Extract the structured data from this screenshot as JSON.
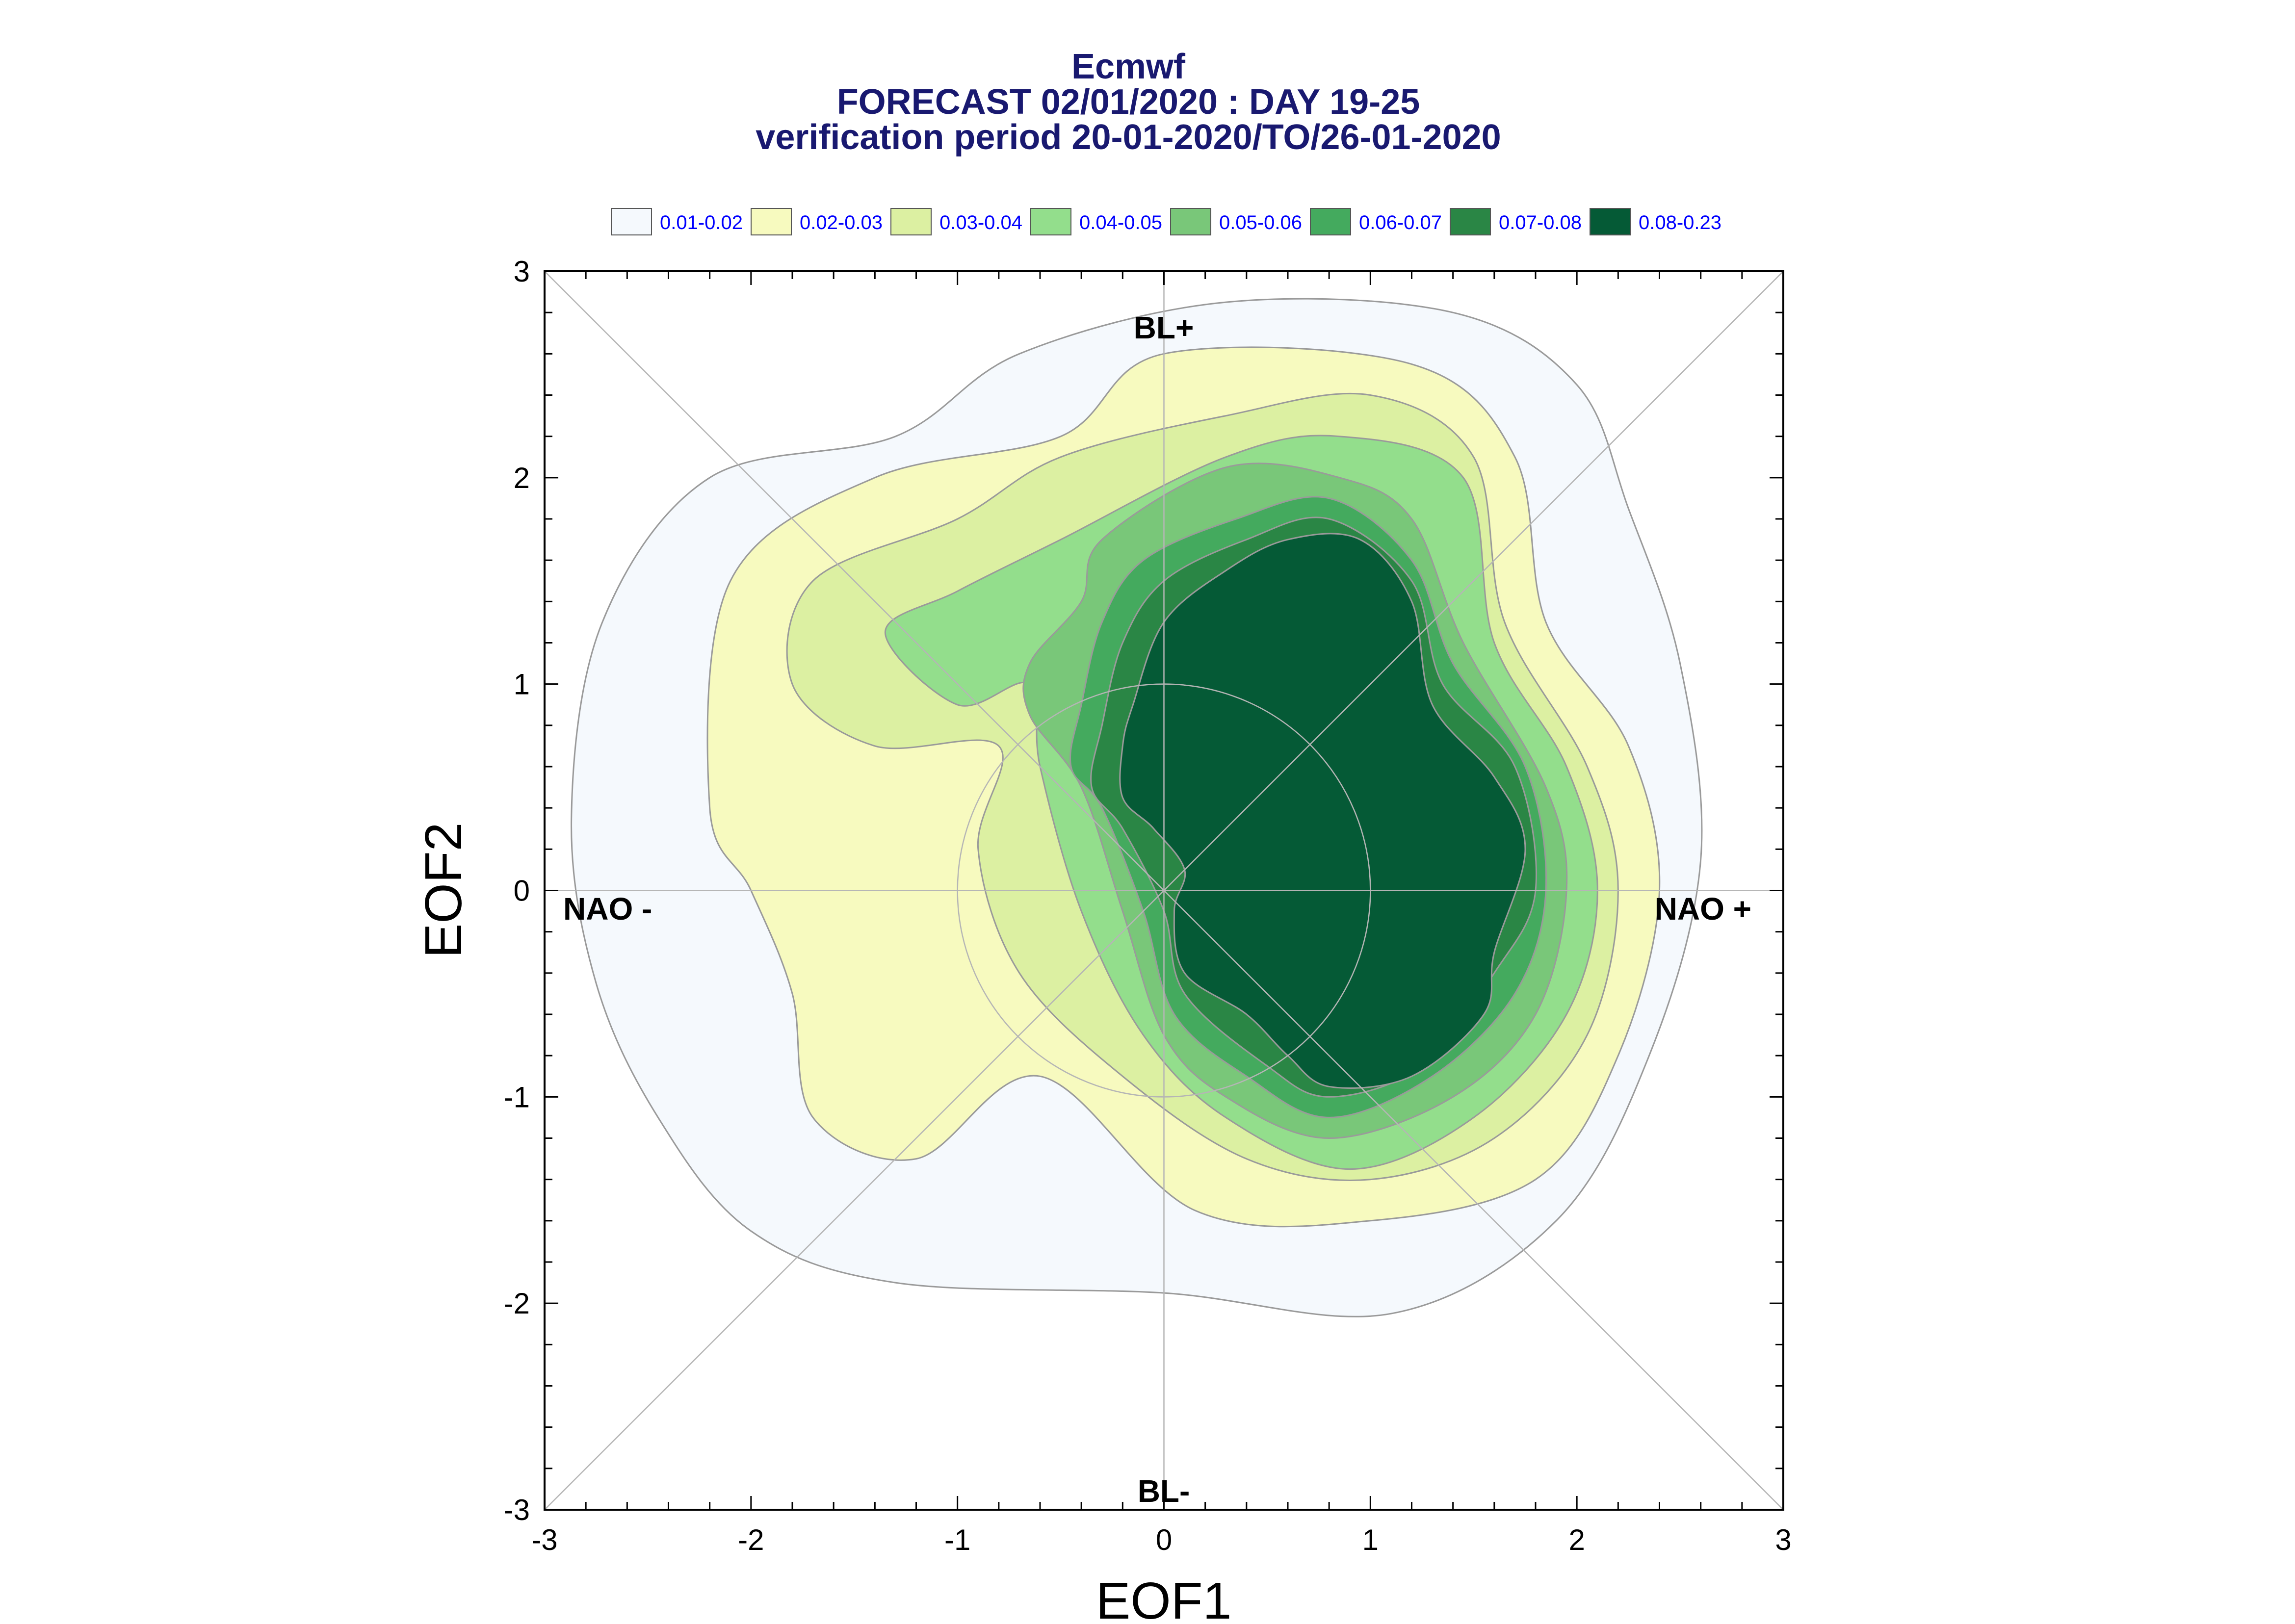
{
  "chart_data": {
    "type": "contour",
    "title": [
      "Ecmwf",
      "FORECAST 02/01/2020 : DAY 19-25",
      "verification period 20-01-2020/TO/26-01-2020"
    ],
    "xlabel": "EOF1",
    "ylabel": "EOF2",
    "xlim": [
      -3,
      3
    ],
    "ylim": [
      -3,
      3
    ],
    "xticks": [
      "-3",
      "-2",
      "-1",
      "0",
      "1",
      "2",
      "3"
    ],
    "yticks": [
      "-3",
      "-2",
      "-1",
      "0",
      "1",
      "2",
      "3"
    ],
    "regime_labels": {
      "top": "BL+",
      "bottom": "BL-",
      "left": "NAO -",
      "right": "NAO +"
    },
    "legend_position": "top",
    "grid": false,
    "unit_circle_radius": 1,
    "levels": [
      {
        "label": "0.01-0.02",
        "color": "#f5f9fd",
        "contour": [
          [
            -2.87,
            0.35
          ],
          [
            -2.72,
            1.3
          ],
          [
            -2.2,
            2.0
          ],
          [
            -1.3,
            2.2
          ],
          [
            -0.7,
            2.6
          ],
          [
            0.3,
            2.85
          ],
          [
            1.4,
            2.8
          ],
          [
            2.0,
            2.45
          ],
          [
            2.25,
            1.85
          ],
          [
            2.5,
            1.1
          ],
          [
            2.6,
            0.15
          ],
          [
            2.35,
            -0.8
          ],
          [
            1.9,
            -1.6
          ],
          [
            1.1,
            -2.05
          ],
          [
            0,
            -1.95
          ],
          [
            -1.3,
            -1.9
          ],
          [
            -2.0,
            -1.65
          ],
          [
            -2.45,
            -1.1
          ],
          [
            -2.75,
            -0.45
          ]
        ]
      },
      {
        "label": "0.02-0.03",
        "color": "#f7fabf",
        "contour": [
          [
            -2.2,
            0.4
          ],
          [
            -2.1,
            1.5
          ],
          [
            -1.4,
            2.0
          ],
          [
            -0.5,
            2.2
          ],
          [
            0,
            2.6
          ],
          [
            1.2,
            2.55
          ],
          [
            1.7,
            2.1
          ],
          [
            1.85,
            1.3
          ],
          [
            2.25,
            0.7
          ],
          [
            2.4,
            0.0
          ],
          [
            2.2,
            -0.8
          ],
          [
            1.8,
            -1.4
          ],
          [
            1.0,
            -1.6
          ],
          [
            0.15,
            -1.55
          ],
          [
            -0.6,
            -0.9
          ],
          [
            -1.2,
            -1.3
          ],
          [
            -1.7,
            -1.1
          ],
          [
            -1.8,
            -0.5
          ],
          [
            -2.0,
            0.0
          ]
        ]
      },
      {
        "label": "0.03-0.04",
        "color": "#dcf0a2",
        "contour": [
          [
            -1.8,
            1.0
          ],
          [
            -1.7,
            1.5
          ],
          [
            -1.0,
            1.8
          ],
          [
            -0.5,
            2.1
          ],
          [
            0.3,
            2.3
          ],
          [
            1.0,
            2.4
          ],
          [
            1.5,
            2.1
          ],
          [
            1.65,
            1.3
          ],
          [
            2.05,
            0.6
          ],
          [
            2.2,
            0.0
          ],
          [
            2.05,
            -0.7
          ],
          [
            1.6,
            -1.2
          ],
          [
            1.0,
            -1.4
          ],
          [
            0.4,
            -1.3
          ],
          [
            -0.2,
            -0.9
          ],
          [
            -0.7,
            -0.4
          ],
          [
            -0.9,
            0.2
          ],
          [
            -0.8,
            0.7
          ],
          [
            -1.4,
            0.7
          ]
        ]
      },
      {
        "label": "0.04-0.05",
        "color": "#93de8c",
        "contour": [
          [
            -1.35,
            1.25
          ],
          [
            -1.0,
            1.45
          ],
          [
            -0.5,
            1.7
          ],
          [
            0.3,
            2.1
          ],
          [
            0.85,
            2.2
          ],
          [
            1.45,
            2.0
          ],
          [
            1.6,
            1.2
          ],
          [
            1.95,
            0.6
          ],
          [
            2.1,
            0.0
          ],
          [
            1.95,
            -0.6
          ],
          [
            1.5,
            -1.1
          ],
          [
            0.9,
            -1.35
          ],
          [
            0.3,
            -1.1
          ],
          [
            -0.1,
            -0.7
          ],
          [
            -0.4,
            -0.1
          ],
          [
            -0.6,
            0.6
          ],
          [
            -0.65,
            1.0
          ],
          [
            -1.0,
            0.9
          ]
        ]
      },
      {
        "label": "0.05-0.06",
        "color": "#79c779",
        "contour": [
          [
            -0.65,
            1.1
          ],
          [
            -0.4,
            1.4
          ],
          [
            -0.3,
            1.7
          ],
          [
            0.3,
            2.05
          ],
          [
            0.85,
            2.0
          ],
          [
            1.2,
            1.8
          ],
          [
            1.45,
            1.2
          ],
          [
            1.85,
            0.5
          ],
          [
            1.95,
            0.0
          ],
          [
            1.8,
            -0.6
          ],
          [
            1.4,
            -1.0
          ],
          [
            0.8,
            -1.2
          ],
          [
            0.3,
            -1.0
          ],
          [
            0.0,
            -0.7
          ],
          [
            -0.2,
            -0.1
          ],
          [
            -0.4,
            0.5
          ],
          [
            -0.65,
            0.85
          ]
        ]
      },
      {
        "label": "0.06-0.07",
        "color": "#44aa5e",
        "contour": [
          [
            -0.4,
            0.9
          ],
          [
            -0.3,
            1.3
          ],
          [
            -0.1,
            1.6
          ],
          [
            0.35,
            1.8
          ],
          [
            0.8,
            1.9
          ],
          [
            1.2,
            1.6
          ],
          [
            1.4,
            1.1
          ],
          [
            1.75,
            0.6
          ],
          [
            1.85,
            0.0
          ],
          [
            1.7,
            -0.5
          ],
          [
            1.3,
            -0.9
          ],
          [
            0.8,
            -1.1
          ],
          [
            0.4,
            -0.9
          ],
          [
            0.05,
            -0.6
          ],
          [
            -0.1,
            -0.1
          ],
          [
            -0.3,
            0.4
          ],
          [
            -0.45,
            0.6
          ]
        ]
      },
      {
        "label": "0.07-0.08",
        "color": "#2a8645",
        "contour": [
          [
            -0.3,
            0.8
          ],
          [
            -0.2,
            1.2
          ],
          [
            0.0,
            1.5
          ],
          [
            0.4,
            1.7
          ],
          [
            0.8,
            1.8
          ],
          [
            1.2,
            1.5
          ],
          [
            1.35,
            1.0
          ],
          [
            1.7,
            0.6
          ],
          [
            1.8,
            0.0
          ],
          [
            1.6,
            -0.4
          ],
          [
            1.25,
            -0.85
          ],
          [
            0.8,
            -1.0
          ],
          [
            0.5,
            -0.85
          ],
          [
            0.1,
            -0.5
          ],
          [
            0.0,
            -0.1
          ],
          [
            -0.2,
            0.3
          ],
          [
            -0.35,
            0.5
          ]
        ]
      },
      {
        "label": "0.08-0.23",
        "color": "#055a36",
        "contour": [
          [
            -0.2,
            0.7
          ],
          [
            -0.15,
            0.9
          ],
          [
            0.0,
            1.3
          ],
          [
            0.3,
            1.55
          ],
          [
            0.6,
            1.7
          ],
          [
            0.95,
            1.7
          ],
          [
            1.2,
            1.4
          ],
          [
            1.3,
            0.9
          ],
          [
            1.6,
            0.55
          ],
          [
            1.75,
            0.2
          ],
          [
            1.6,
            -0.3
          ],
          [
            1.55,
            -0.6
          ],
          [
            1.2,
            -0.9
          ],
          [
            0.8,
            -0.95
          ],
          [
            0.6,
            -0.8
          ],
          [
            0.4,
            -0.6
          ],
          [
            0.1,
            -0.4
          ],
          [
            0.05,
            -0.1
          ],
          [
            0.1,
            0.1
          ],
          [
            -0.05,
            0.3
          ],
          [
            -0.2,
            0.45
          ]
        ]
      }
    ]
  }
}
